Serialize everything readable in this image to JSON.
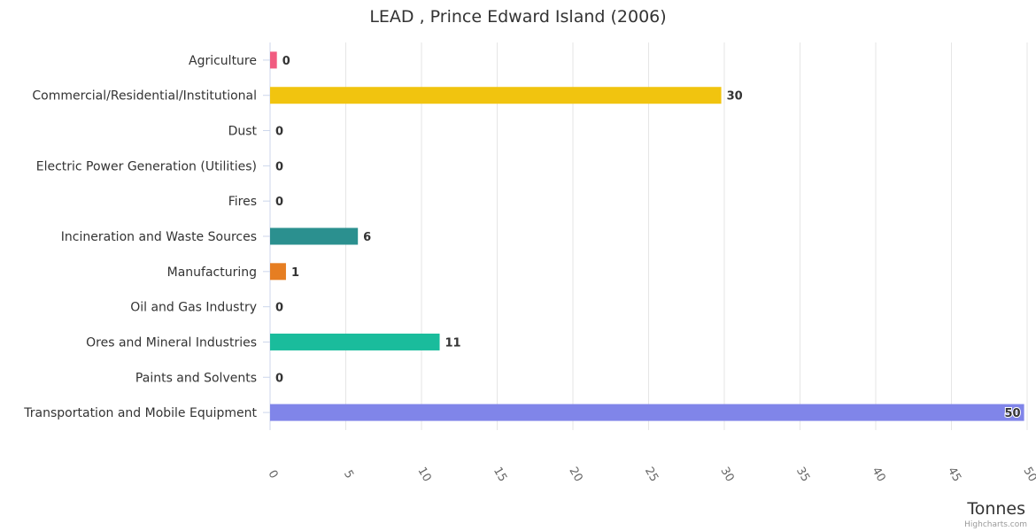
{
  "chart_data": {
    "type": "bar",
    "orientation": "horizontal",
    "title": "LEAD , Prince Edward Island (2006)",
    "xlabel": "",
    "ylabel": "Tonnes",
    "ylim": [
      0,
      50
    ],
    "tick_step": 5,
    "grid": true,
    "categories": [
      "Agriculture",
      "Commercial/Residential/Institutional",
      "Dust",
      "Electric Power Generation (Utilities)",
      "Fires",
      "Incineration and Waste Sources",
      "Manufacturing",
      "Oil and Gas Industry",
      "Ores and Mineral Industries",
      "Paints and Solvents",
      "Transportation and Mobile Equipment"
    ],
    "values": [
      0.45,
      29.8,
      0,
      0,
      0,
      5.8,
      1.05,
      0,
      11.2,
      0,
      49.8
    ],
    "data_labels": [
      "0",
      "30",
      "0",
      "0",
      "0",
      "6",
      "1",
      "0",
      "11",
      "0",
      "50"
    ],
    "colors": [
      "#f15c80",
      "#f1c40f",
      "#2b908f",
      "#f45b5b",
      "#91e8e1",
      "#2b908f",
      "#e67e22",
      "#7cb5ec",
      "#1abc9c",
      "#434348",
      "#8085e9"
    ],
    "credit": "Highcharts.com"
  }
}
